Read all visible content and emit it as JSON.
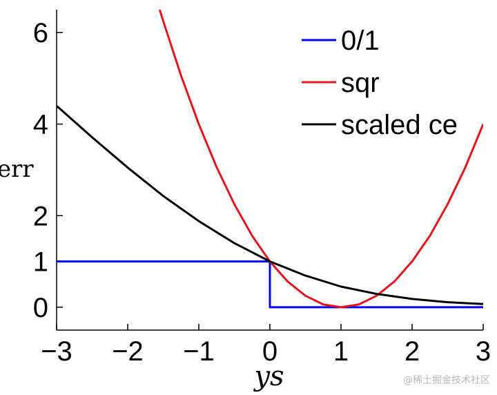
{
  "chart_data": {
    "type": "line",
    "xlabel": "ys",
    "ylabel": "err",
    "xlim": [
      -3,
      3
    ],
    "ylim": [
      -0.5,
      6.5
    ],
    "xticks": [
      -3,
      -2,
      -1,
      0,
      1,
      2,
      3
    ],
    "xtick_labels": [
      "−3",
      "−2",
      "−1",
      "0",
      "1",
      "2",
      "3"
    ],
    "yticks": [
      0,
      1,
      2,
      4,
      6
    ],
    "ytick_labels": [
      "0",
      "1",
      "2",
      "4",
      "6"
    ],
    "legend_position": "top-right",
    "series": [
      {
        "name": "0/1",
        "color": "#0000ff",
        "x": [
          -3,
          0,
          0,
          3
        ],
        "y": [
          1,
          1,
          0,
          0
        ]
      },
      {
        "name": "sqr",
        "color": "#e8141c",
        "x": [
          -1.55,
          -1.5,
          -1.25,
          -1.0,
          -0.75,
          -0.5,
          -0.25,
          0.0,
          0.25,
          0.5,
          0.75,
          1.0,
          1.25,
          1.5,
          1.75,
          2.0,
          2.25,
          2.5,
          2.75,
          3.0
        ],
        "y": [
          6.5,
          6.25,
          5.06,
          4.0,
          3.06,
          2.25,
          1.56,
          1.0,
          0.56,
          0.25,
          0.06,
          0.0,
          0.06,
          0.25,
          0.56,
          1.0,
          1.56,
          2.25,
          3.06,
          4.0
        ]
      },
      {
        "name": "scaled ce",
        "color": "#000000",
        "x": [
          -3.0,
          -2.5,
          -2.0,
          -1.5,
          -1.0,
          -0.5,
          0.0,
          0.5,
          1.0,
          1.5,
          2.0,
          2.5,
          3.0
        ],
        "y": [
          4.4,
          3.71,
          3.05,
          2.43,
          1.88,
          1.4,
          1.0,
          0.69,
          0.45,
          0.29,
          0.18,
          0.11,
          0.07
        ]
      }
    ]
  },
  "watermark": "@稀土掘金技术社区"
}
